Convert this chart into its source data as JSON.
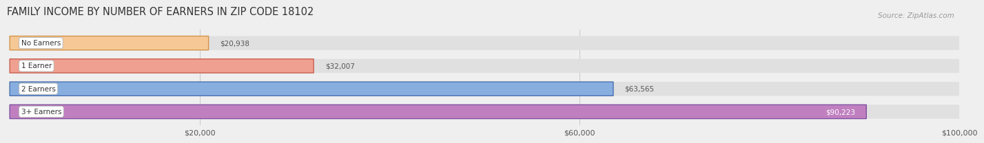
{
  "title": "FAMILY INCOME BY NUMBER OF EARNERS IN ZIP CODE 18102",
  "source": "Source: ZipAtlas.com",
  "categories": [
    "No Earners",
    "1 Earner",
    "2 Earners",
    "3+ Earners"
  ],
  "values": [
    20938,
    32007,
    63565,
    90223
  ],
  "bar_colors": [
    "#f5c896",
    "#f0a090",
    "#87aede",
    "#c080c0"
  ],
  "bar_edge_colors": [
    "#d4944a",
    "#c96050",
    "#4a70b0",
    "#8050a0"
  ],
  "label_colors": [
    "#555555",
    "#555555",
    "#555555",
    "#ffffff"
  ],
  "background_color": "#efefef",
  "bar_bg_color": "#e0e0e0",
  "xlim": [
    0,
    100000
  ],
  "xticks": [
    20000,
    60000,
    100000
  ],
  "xtick_labels": [
    "$20,000",
    "$60,000",
    "$100,000"
  ],
  "value_labels": [
    "$20,938",
    "$32,007",
    "$63,565",
    "$90,223"
  ],
  "title_fontsize": 10.5,
  "source_fontsize": 7.5,
  "bar_label_fontsize": 7.5,
  "cat_label_fontsize": 7.5,
  "tick_fontsize": 8
}
